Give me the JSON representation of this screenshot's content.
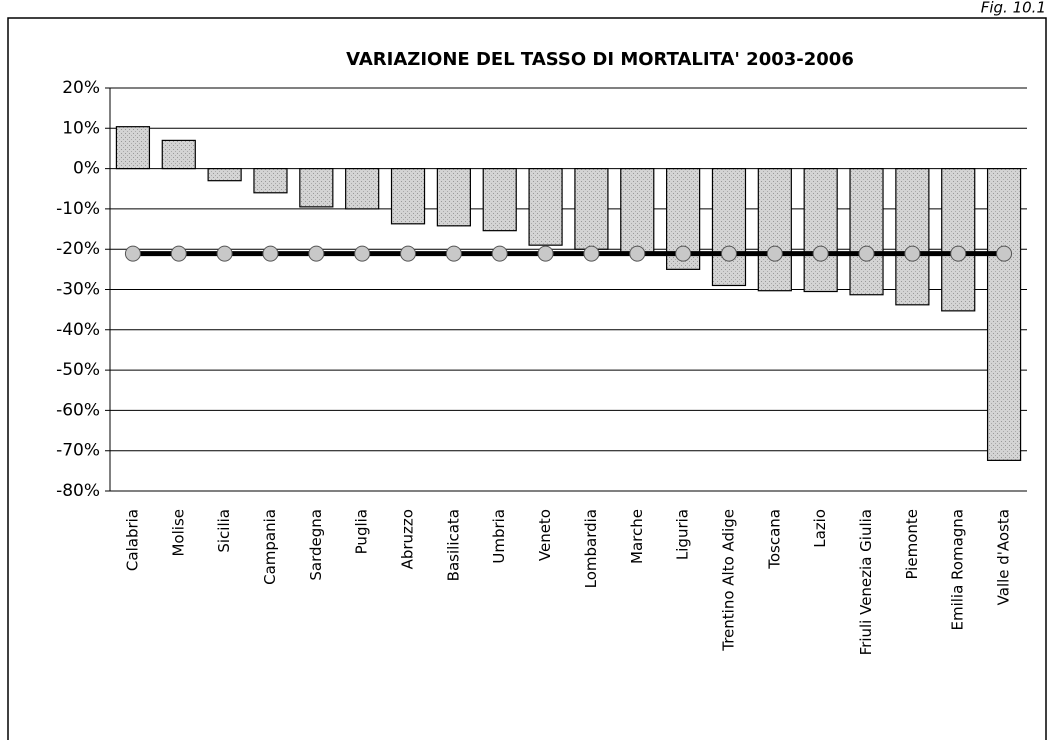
{
  "chart_data": {
    "type": "bar",
    "figure_label": "Fig. 10.1",
    "title": "VARIAZIONE DEL TASSO DI MORTALITA' 2003-2006",
    "categories": [
      "Calabria",
      "Molise",
      "Sicilia",
      "Campania",
      "Sardegna",
      "Puglia",
      "Abruzzo",
      "Basilicata",
      "Umbria",
      "Veneto",
      "Lombardia",
      "Marche",
      "Liguria",
      "Trentino Alto Adige",
      "Toscana",
      "Lazio",
      "Friuli Venezia Giulia",
      "Piemonte",
      "Emilia Romagna",
      "Valle d'Aosta"
    ],
    "series": [
      {
        "type": "bar",
        "color": "#d4d4d4",
        "values": [
          10.4,
          7,
          -3,
          -6,
          -9.5,
          -10,
          -13.7,
          -14.2,
          -15.4,
          -19,
          -20,
          -21,
          -25,
          -29,
          -30.3,
          -30.5,
          -31.3,
          -33.8,
          -35.3,
          -72.4
        ]
      },
      {
        "type": "line",
        "color": "#000000",
        "marker_color": "#c8c8c8",
        "values": [
          -21.1,
          -21.1,
          -21.1,
          -21.1,
          -21.1,
          -21.1,
          -21.1,
          -21.1,
          -21.1,
          -21.1,
          -21.1,
          -21.1,
          -21.1,
          -21.1,
          -21.1,
          -21.1,
          -21.1,
          -21.1,
          -21.1,
          -21.1
        ]
      }
    ],
    "ylim": [
      -80,
      20
    ],
    "yticks": [
      {
        "value": 20,
        "label": "20%"
      },
      {
        "value": 10,
        "label": "10%"
      },
      {
        "value": 0,
        "label": "0%"
      },
      {
        "value": -10,
        "label": "-10%"
      },
      {
        "value": -20,
        "label": "-20%"
      },
      {
        "value": -30,
        "label": "-30%"
      },
      {
        "value": -40,
        "label": "-40%"
      },
      {
        "value": -50,
        "label": "-50%"
      },
      {
        "value": -60,
        "label": "-60%"
      },
      {
        "value": -70,
        "label": "-70%"
      },
      {
        "value": -80,
        "label": "-80%"
      }
    ],
    "grid": true
  }
}
